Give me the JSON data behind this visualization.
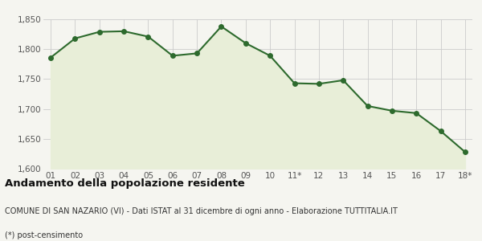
{
  "x_labels": [
    "01",
    "02",
    "03",
    "04",
    "05",
    "06",
    "07",
    "08",
    "09",
    "10",
    "11*",
    "12",
    "13",
    "14",
    "15",
    "16",
    "17",
    "18*"
  ],
  "y_values": [
    1786,
    1818,
    1829,
    1830,
    1821,
    1789,
    1793,
    1838,
    1810,
    1789,
    1743,
    1742,
    1748,
    1705,
    1697,
    1693,
    1663,
    1628
  ],
  "line_color": "#2d6a2d",
  "fill_color": "#e8eed8",
  "marker": "o",
  "marker_size": 4,
  "marker_color": "#2d6a2d",
  "ylim": [
    1600,
    1850
  ],
  "yticks": [
    1600,
    1650,
    1700,
    1750,
    1800,
    1850
  ],
  "grid_color": "#cccccc",
  "background_color": "#f5f5f0",
  "title": "Andamento della popolazione residente",
  "subtitle": "COMUNE DI SAN NAZARIO (VI) - Dati ISTAT al 31 dicembre di ogni anno - Elaborazione TUTTITALIA.IT",
  "footnote": "(*) post-censimento",
  "title_fontsize": 9.5,
  "subtitle_fontsize": 7,
  "footnote_fontsize": 7,
  "tick_fontsize": 7.5,
  "line_width": 1.5
}
